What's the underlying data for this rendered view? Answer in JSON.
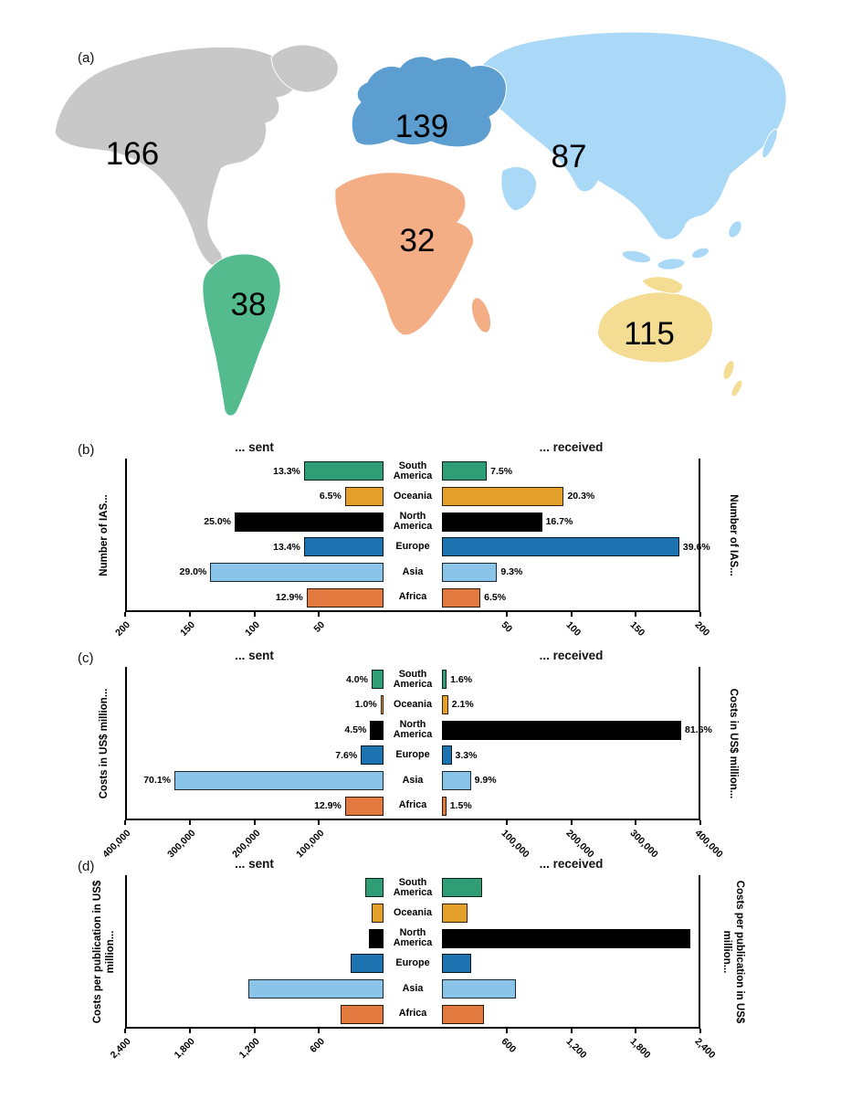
{
  "figure": {
    "panel_a": "(a)",
    "panel_b": "(b)",
    "panel_c": "(c)",
    "panel_d": "(d)"
  },
  "chart_data": [
    {
      "type": "map",
      "panel": "(a)",
      "regions": [
        {
          "name": "North America",
          "value": 166,
          "color": "#c8c8c8"
        },
        {
          "name": "South America",
          "value": 38,
          "color": "#54bb8e"
        },
        {
          "name": "Europe",
          "value": 139,
          "color": "#5b9ecf"
        },
        {
          "name": "Africa",
          "value": 32,
          "color": "#f4ae85"
        },
        {
          "name": "Asia",
          "value": 87,
          "color": "#aad8f7"
        },
        {
          "name": "Oceania",
          "value": 115,
          "color": "#f4dd92"
        }
      ]
    },
    {
      "type": "bar",
      "panel": "(b)",
      "left_title": "... sent",
      "right_title": "... received",
      "side_label": "Number of IAS...",
      "axis_max": 200,
      "categories": [
        "South America",
        "Oceania",
        "North America",
        "Europe",
        "Asia",
        "Africa"
      ],
      "colors": [
        "#2f9e77",
        "#e5a02b",
        "#000000",
        "#1d72b0",
        "#8ac4e8",
        "#e2793f"
      ],
      "series": [
        {
          "name": "sent",
          "values": [
            62,
            30,
            116,
            62,
            135,
            60
          ],
          "labels": [
            "13.3%",
            "6.5%",
            "25.0%",
            "13.4%",
            "29.0%",
            "12.9%"
          ]
        },
        {
          "name": "received",
          "values": [
            35,
            95,
            78,
            185,
            43,
            30
          ],
          "labels": [
            "7.5%",
            "20.3%",
            "16.7%",
            "39.6%",
            "9.3%",
            "6.5%"
          ]
        }
      ],
      "tick_labels_left": [
        "200",
        "150",
        "100",
        "50"
      ],
      "tick_labels_right": [
        "50",
        "100",
        "150",
        "200"
      ]
    },
    {
      "type": "bar",
      "panel": "(c)",
      "left_title": "... sent",
      "right_title": "... received",
      "side_label": "Costs in US$ million...",
      "axis_max": 400000,
      "categories": [
        "South America",
        "Oceania",
        "North America",
        "Europe",
        "Asia",
        "Africa"
      ],
      "colors": [
        "#2f9e77",
        "#e5a02b",
        "#000000",
        "#1d72b0",
        "#8ac4e8",
        "#e2793f"
      ],
      "series": [
        {
          "name": "sent",
          "values": [
            18600,
            4650,
            20900,
            35300,
            326000,
            60000
          ],
          "labels": [
            "4.0%",
            "1.0%",
            "4.5%",
            "7.6%",
            "70.1%",
            "12.9%"
          ]
        },
        {
          "name": "received",
          "values": [
            7300,
            9600,
            373000,
            15000,
            45000,
            6800
          ],
          "labels": [
            "1.6%",
            "2.1%",
            "81.6%",
            "3.3%",
            "9.9%",
            "1.5%"
          ]
        }
      ],
      "tick_labels_left": [
        "400,000",
        "300,000",
        "200,000",
        "100,000"
      ],
      "tick_labels_right": [
        "100,000",
        "200,000",
        "300,000",
        "400,000"
      ]
    },
    {
      "type": "bar",
      "panel": "(d)",
      "left_title": "... sent",
      "right_title": "... received",
      "side_label": "Costs per publication in US$ million...",
      "axis_max": 2400,
      "categories": [
        "South America",
        "Oceania",
        "North America",
        "Europe",
        "Asia",
        "Africa"
      ],
      "colors": [
        "#2f9e77",
        "#e5a02b",
        "#000000",
        "#1d72b0",
        "#8ac4e8",
        "#e2793f"
      ],
      "series": [
        {
          "name": "sent",
          "values": [
            170,
            110,
            140,
            310,
            1260,
            400
          ],
          "labels": [
            "",
            "",
            "",
            "",
            "",
            ""
          ]
        },
        {
          "name": "received",
          "values": [
            380,
            240,
            2320,
            270,
            690,
            390
          ],
          "labels": [
            "",
            "",
            "",
            "",
            "",
            ""
          ]
        }
      ],
      "tick_labels_left": [
        "2,400",
        "1,800",
        "1,200",
        "600"
      ],
      "tick_labels_right": [
        "600",
        "1,200",
        "1,800",
        "2,400"
      ]
    }
  ]
}
